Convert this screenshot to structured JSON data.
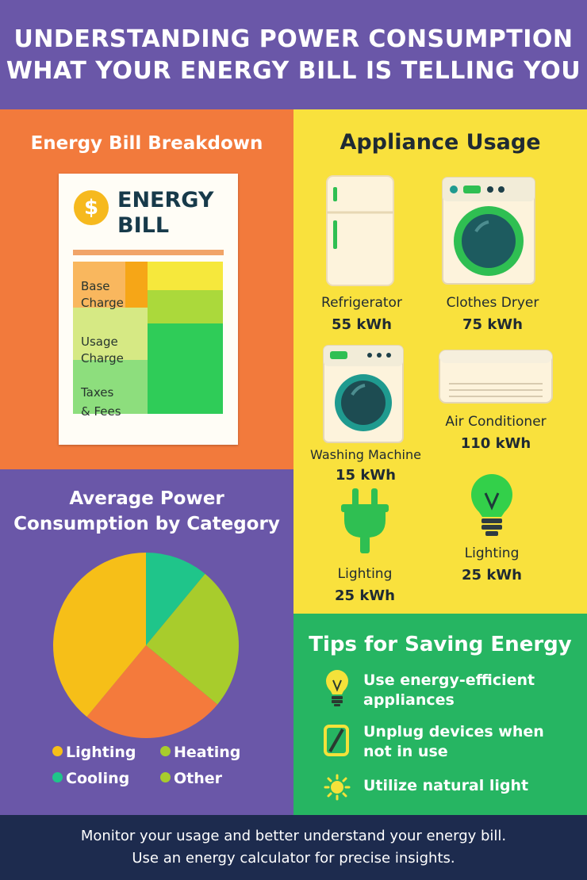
{
  "header": {
    "line1": "UNDERSTANDING POWER CONSUMPTION",
    "line2": "WHAT YOUR ENERGY BILL IS TELLING YOU"
  },
  "bill_breakdown": {
    "title": "Energy Bill Breakdown",
    "bill_icon": "dollar-coin-icon",
    "bill_title_line1": "ENERGY",
    "bill_title_line2": "BILL",
    "items": [
      {
        "line1": "Base",
        "line2": "Charge"
      },
      {
        "line1": "Usage",
        "line2": "Charge"
      },
      {
        "line1": "Taxes",
        "line2": "& Fees"
      }
    ]
  },
  "category_chart": {
    "title_line1": "Average Power",
    "title_line2": "Consumption by Category",
    "legend": [
      {
        "label": "Lighting",
        "color": "#f6bf18"
      },
      {
        "label": "Heating",
        "color": "#a8cc2c"
      },
      {
        "label": "Cooling",
        "color": "#1fc58a"
      },
      {
        "label": "Other",
        "color": "#a8cc2c"
      }
    ]
  },
  "chart_data": {
    "type": "pie",
    "title": "Average Power Consumption by Category",
    "slices": [
      {
        "color": "#1fc58a",
        "fraction": 0.11
      },
      {
        "color": "#a8cc2c",
        "fraction": 0.25
      },
      {
        "color": "#f47a3c",
        "fraction": 0.25
      },
      {
        "color": "#f6bf18",
        "fraction": 0.39
      }
    ],
    "legend": [
      "Lighting",
      "Heating",
      "Cooling",
      "Other"
    ],
    "legend_position": "bottom"
  },
  "appliances": {
    "title": "Appliance Usage",
    "items": [
      {
        "name": "Refrigerator",
        "value": "55 kWh",
        "icon": "refrigerator-icon"
      },
      {
        "name": "Clothes Dryer",
        "value": "75 kWh",
        "icon": "clothes-dryer-icon"
      },
      {
        "name": "Washing Machine",
        "value": "15 kWh",
        "icon": "washing-machine-icon"
      },
      {
        "name": "Air Conditioner",
        "value": "110 kWh",
        "icon": "air-conditioner-icon"
      },
      {
        "name": "Lighting",
        "value": "25 kWh",
        "icon": "plug-icon"
      },
      {
        "name": "Lighting",
        "value": "25 kWh",
        "icon": "lightbulb-icon"
      }
    ]
  },
  "tips": {
    "title": "Tips for Saving Energy",
    "items": [
      {
        "line1": "Use energy-efficient",
        "line2": "appliances",
        "icon": "lightbulb-icon"
      },
      {
        "line1": "Unplug devices when",
        "line2": "not in use",
        "icon": "unplug-icon"
      },
      {
        "line1": "Utilize natural light",
        "line2": "",
        "icon": "sun-icon"
      }
    ]
  },
  "footer": {
    "line1": "Monitor your usage and better understand your energy bill.",
    "line2": "Use an energy calculator for precise insights."
  },
  "colors": {
    "purple": "#6a57a8",
    "orange": "#f27a3c",
    "yellow": "#f9e13d",
    "green": "#26b562",
    "navy": "#1d2b4e"
  }
}
